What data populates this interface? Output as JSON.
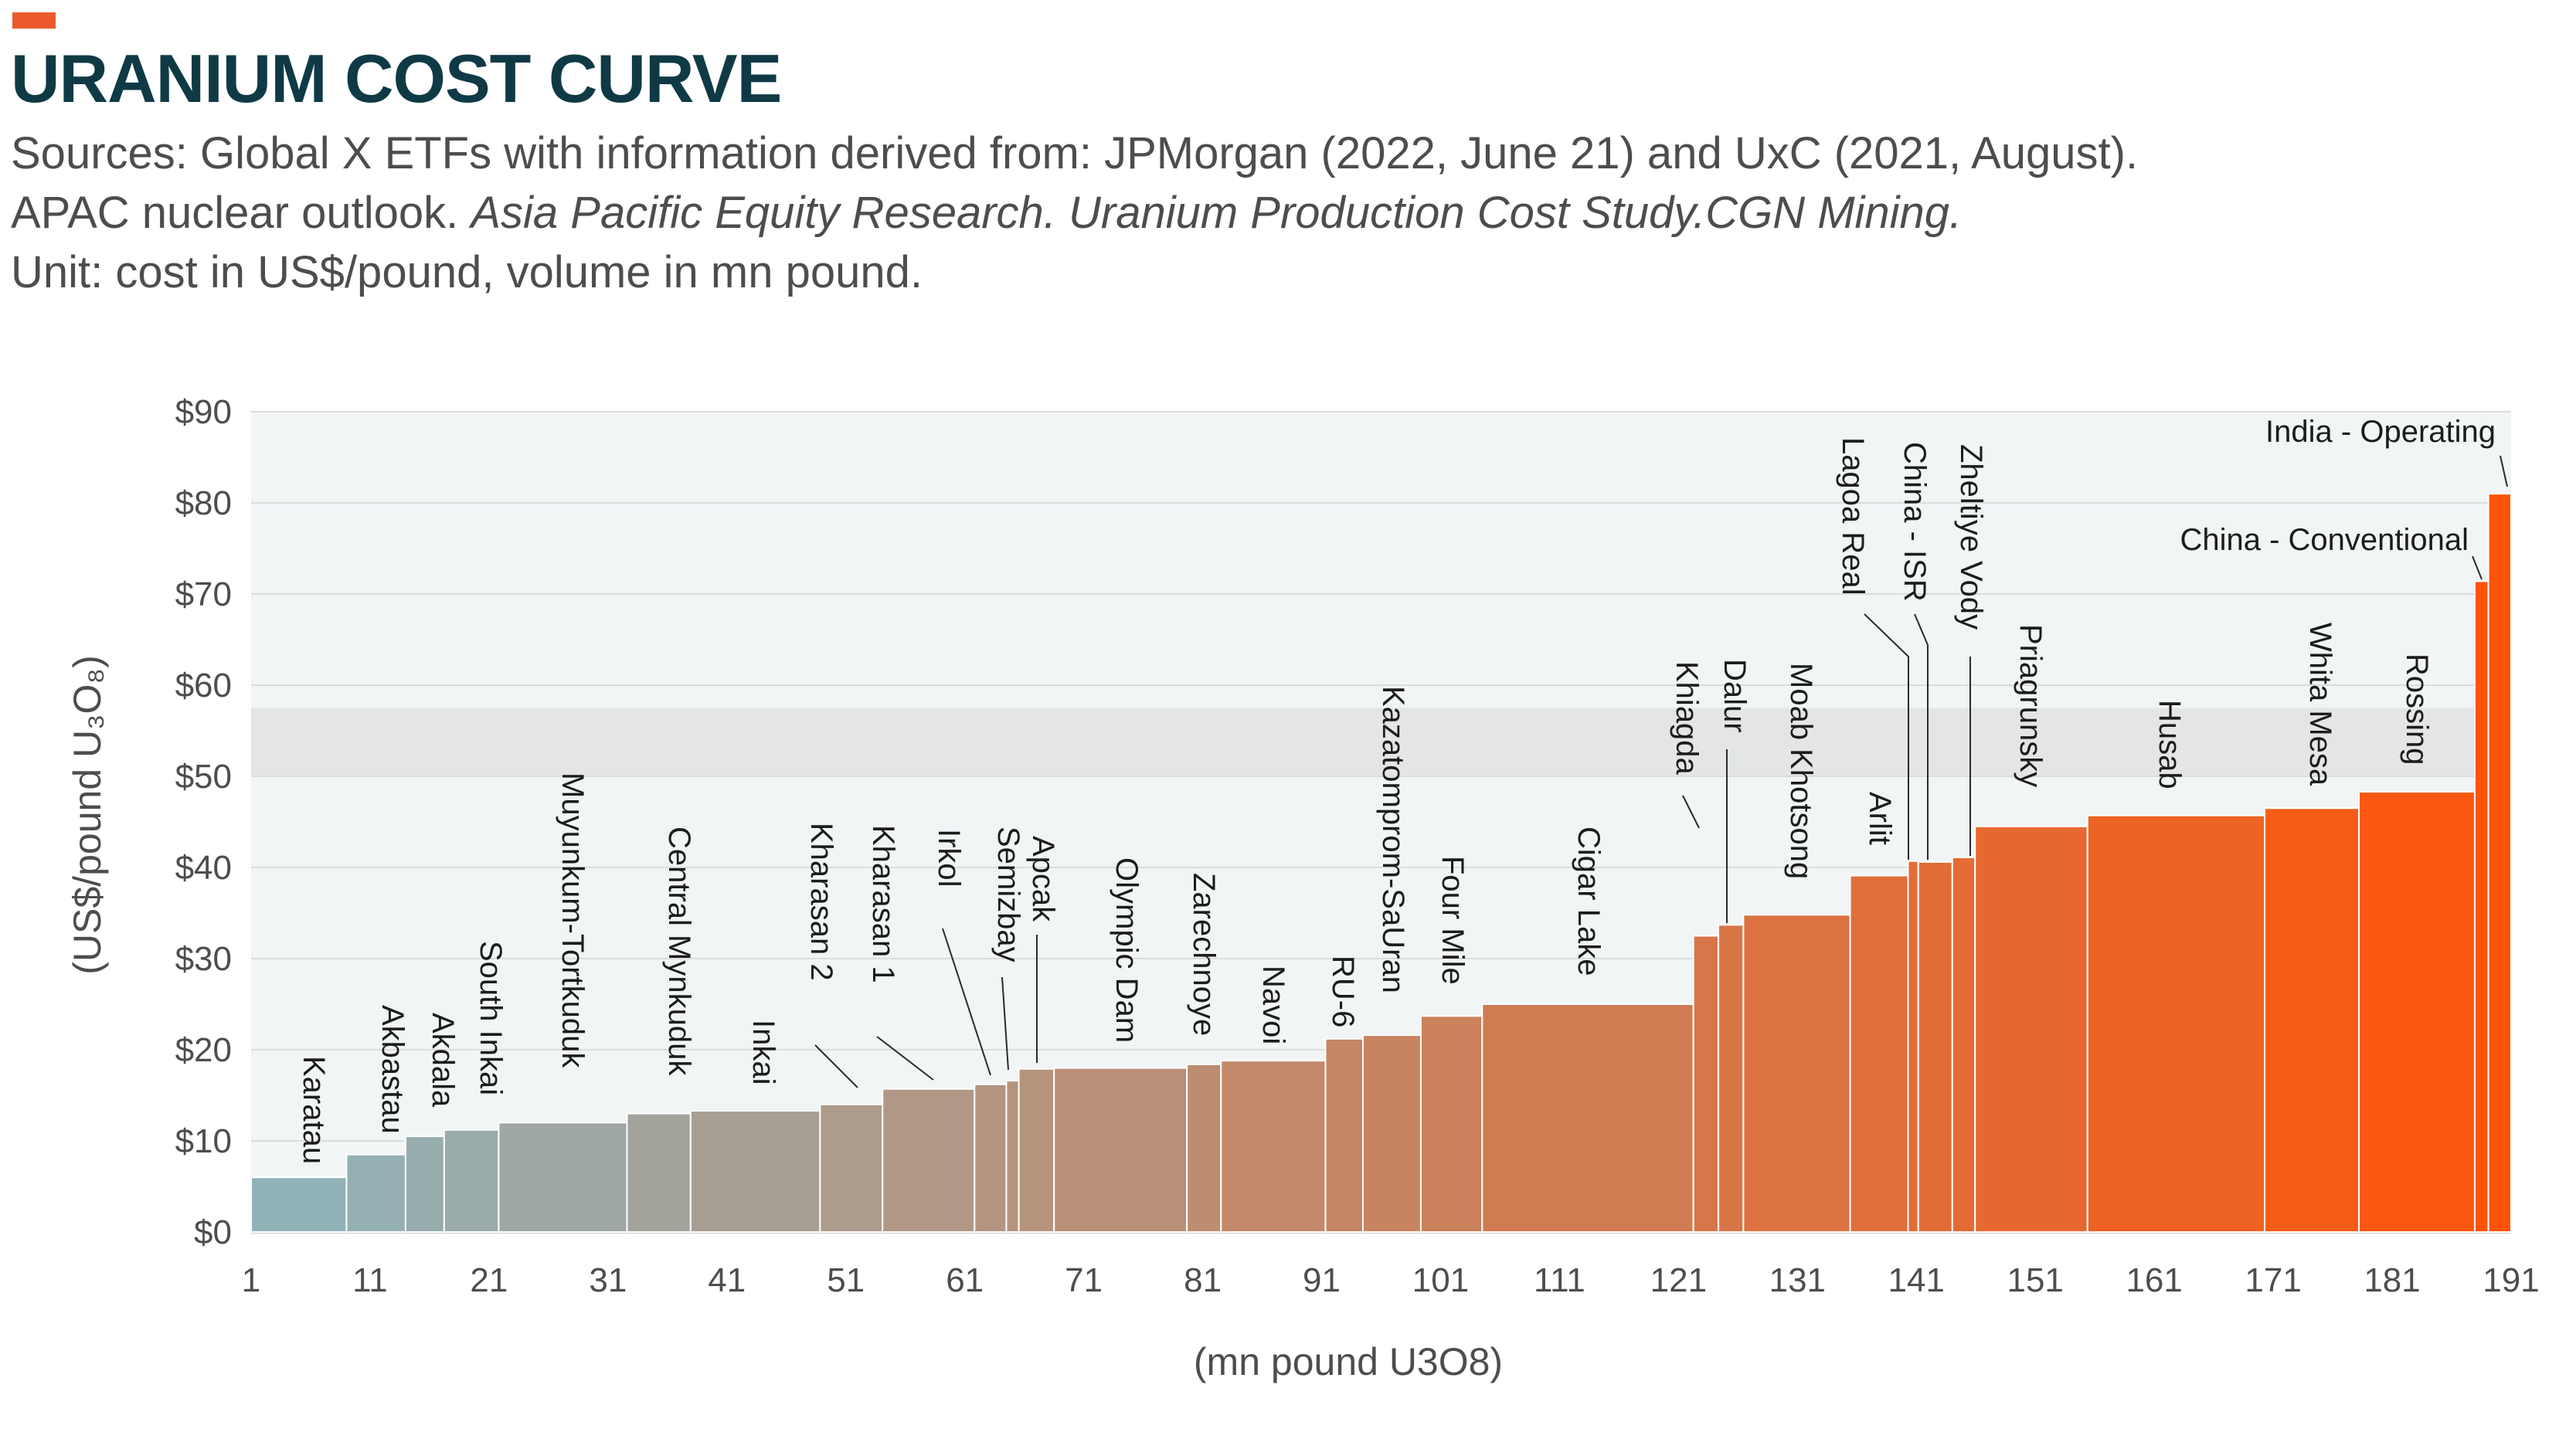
{
  "header": {
    "title": "URANIUM COST CURVE",
    "accent_color": "#ea5a2a",
    "sources_line1": "Sources: Global X ETFs with information derived from: JPMorgan (2022, June 21) and UxC (2021, August).",
    "sources_line2_plain": "APAC nuclear outlook. ",
    "sources_line2_italic": "Asia Pacific Equity Research. Uranium Production Cost Study.CGN Mining.",
    "unit_line": "Unit: cost in US$/pound, volume in mn pound."
  },
  "chart_data": {
    "type": "bar",
    "xlabel": "(mn pound U3O8)",
    "ylabel": "(US$/pound U₃O₈)",
    "xlim": [
      1,
      191
    ],
    "ylim": [
      0,
      90
    ],
    "x_ticks": [
      1,
      11,
      21,
      31,
      41,
      51,
      61,
      71,
      81,
      91,
      101,
      111,
      121,
      131,
      141,
      151,
      161,
      171,
      181,
      191
    ],
    "y_ticks": [
      0,
      10,
      20,
      30,
      40,
      50,
      60,
      70,
      80,
      90
    ],
    "y_tick_labels": [
      "$0",
      "$10",
      "$20",
      "$30",
      "$40",
      "$50",
      "$60",
      "$70",
      "$80",
      "$90"
    ],
    "highlight_band": [
      50,
      57.5
    ],
    "color_start": "#8fb5bc",
    "color_end": "#ff5308",
    "mines": [
      {
        "name": "Karatau",
        "x0": 1,
        "x1": 9.4,
        "cost": 6
      },
      {
        "name": "Akbastau",
        "x0": 9.4,
        "x1": 14.6,
        "cost": 8.5
      },
      {
        "name": "Akdala",
        "x0": 14.6,
        "x1": 18,
        "cost": 10.5
      },
      {
        "name": "South Inkai",
        "x0": 18,
        "x1": 22.8,
        "cost": 11.2
      },
      {
        "name": "Muyunkum-Tortkuduk",
        "x0": 22.8,
        "x1": 34.1,
        "cost": 12
      },
      {
        "name": "Central Mynkuduk",
        "x0": 34.1,
        "x1": 39.7,
        "cost": 13
      },
      {
        "name": "Inkai",
        "x0": 39.7,
        "x1": 51.1,
        "cost": 13.3
      },
      {
        "name": "Kharasan 2",
        "x0": 51.1,
        "x1": 56.6,
        "cost": 14
      },
      {
        "name": "Kharasan 1",
        "x0": 56.6,
        "x1": 64.7,
        "cost": 15.7
      },
      {
        "name": "Irkol",
        "x0": 64.7,
        "x1": 67.5,
        "cost": 16.2
      },
      {
        "name": "Semizbay",
        "x0": 67.5,
        "x1": 68.6,
        "cost": 16.6
      },
      {
        "name": "Apcak",
        "x0": 68.6,
        "x1": 71.7,
        "cost": 17.9
      },
      {
        "name": "Olympic Dam",
        "x0": 71.7,
        "x1": 83.4,
        "cost": 18
      },
      {
        "name": "Zarechnoye",
        "x0": 83.4,
        "x1": 86.4,
        "cost": 18.4
      },
      {
        "name": "Navoi",
        "x0": 86.4,
        "x1": 95.6,
        "cost": 18.8
      },
      {
        "name": "RU-6",
        "x0": 95.6,
        "x1": 98.9,
        "cost": 21.2
      },
      {
        "name": "Kazatomprom-SaUran",
        "x0": 98.9,
        "x1": 104,
        "cost": 21.6
      },
      {
        "name": "Four Mile",
        "x0": 104,
        "x1": 109.4,
        "cost": 23.7
      },
      {
        "name": "Cigar Lake",
        "x0": 109.4,
        "x1": 128,
        "cost": 25
      },
      {
        "name": "Khiagda",
        "x0": 128,
        "x1": 130.2,
        "cost": 32.5
      },
      {
        "name": "Dalur",
        "x0": 130.2,
        "x1": 132.4,
        "cost": 33.7
      },
      {
        "name": "Moab Khotsong",
        "x0": 132.4,
        "x1": 141.8,
        "cost": 34.8
      },
      {
        "name": "Arlit",
        "x0": 141.8,
        "x1": 146.9,
        "cost": 39.1
      },
      {
        "name": "Lagoa Real",
        "x0": 146.9,
        "x1": 147.8,
        "cost": 40.7
      },
      {
        "name": "China - ISR",
        "x0": 147.8,
        "x1": 150.8,
        "cost": 40.6
      },
      {
        "name": "Zheltiye Vody",
        "x0": 150.8,
        "x1": 152.8,
        "cost": 41.1
      },
      {
        "name": "Priagrunsky",
        "x0": 152.8,
        "x1": 162.7,
        "cost": 44.5
      },
      {
        "name": "Husab",
        "x0": 162.7,
        "x1": 178.3,
        "cost": 45.7
      },
      {
        "name": "Whita Mesa",
        "x0": 178.3,
        "x1": 186.6,
        "cost": 46.5
      },
      {
        "name": "Rossing",
        "x0": 186.6,
        "x1": 196.8,
        "cost": 48.3
      },
      {
        "name": "China - Conventional",
        "x0": 196.8,
        "x1": 198,
        "cost": 71.4
      },
      {
        "name": "India - Operating",
        "x0": 198,
        "x1": 200,
        "cost": 81
      }
    ]
  }
}
